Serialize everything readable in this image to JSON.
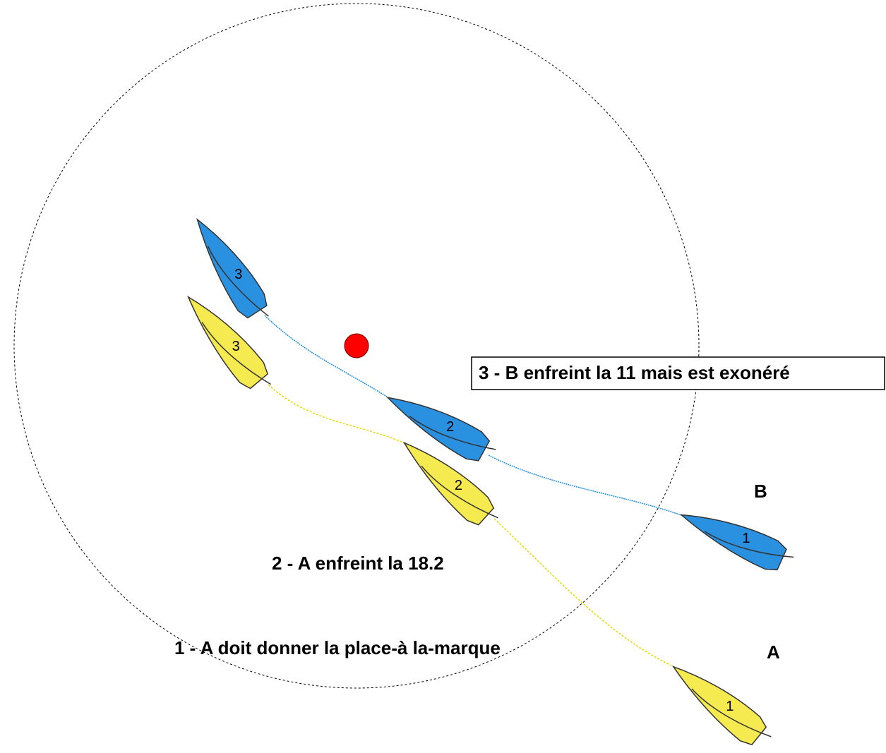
{
  "captions": [
    "3 - B enfreint la 11 mais est exonéré",
    "2 - A enfreint la 18.2",
    "1 - A doit donner la place-à la-marque"
  ],
  "boat_letters": [
    "B",
    "A"
  ],
  "boats": [
    {
      "label": "3"
    },
    {
      "label": "3"
    },
    {
      "label": "2"
    },
    {
      "label": "2"
    },
    {
      "label": "1"
    },
    {
      "label": "1"
    }
  ]
}
